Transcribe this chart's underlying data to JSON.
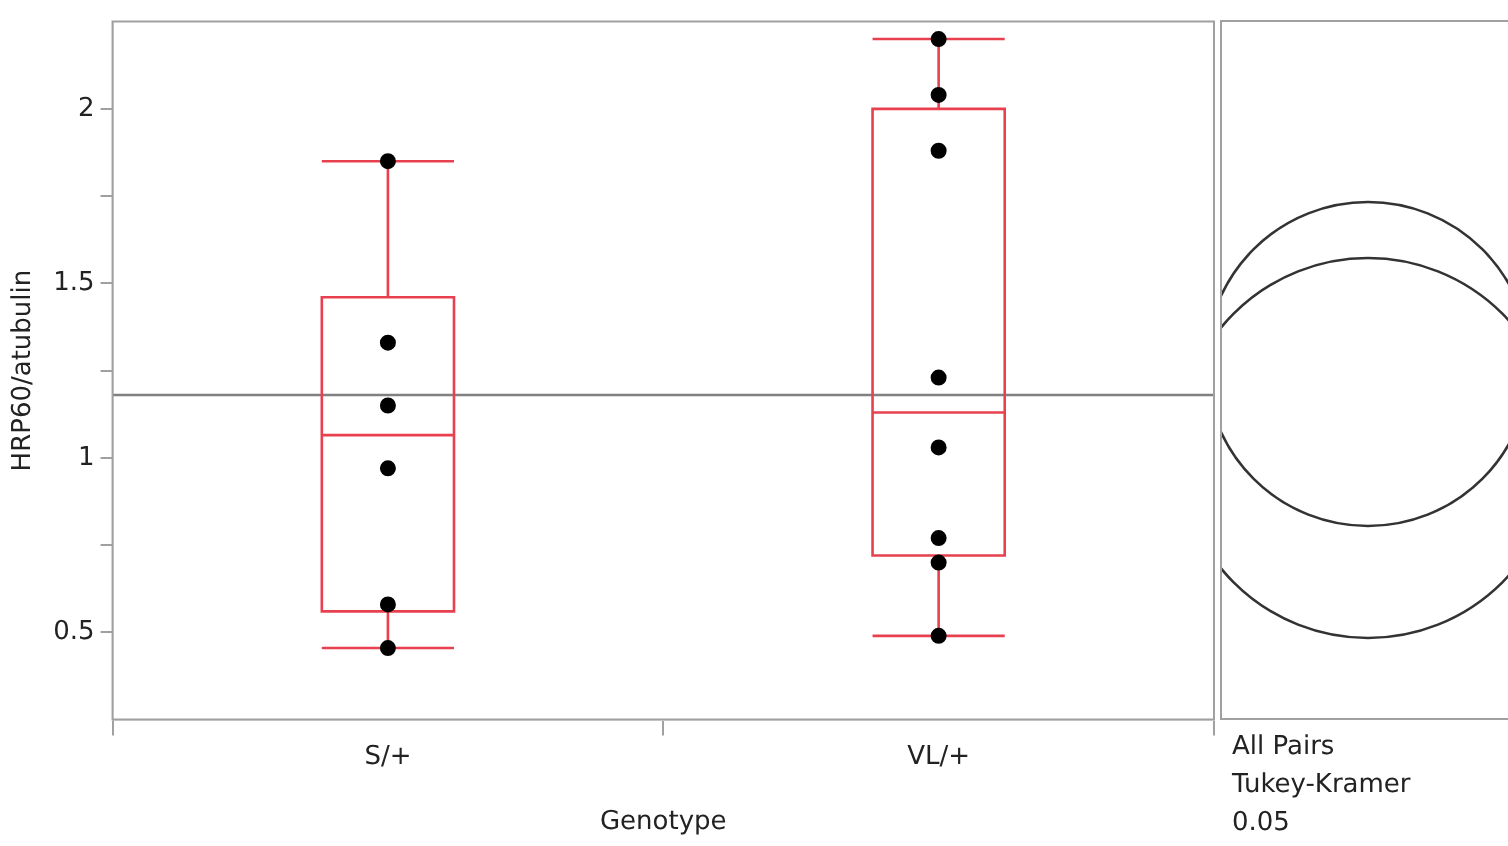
{
  "chart_data": {
    "type": "box",
    "xlabel": "Genotype",
    "ylabel": "HRP60/atubulin",
    "categories": [
      "S/+",
      "VL/+"
    ],
    "series": [
      {
        "type": "box",
        "color": "#e8404f",
        "boxes": [
          {
            "low": 0.455,
            "q1": 0.56,
            "median": 1.065,
            "q3": 1.46,
            "high": 1.85
          },
          {
            "low": 0.49,
            "q1": 0.72,
            "median": 1.13,
            "q3": 2.0,
            "high": 2.2
          }
        ]
      },
      {
        "type": "scatter",
        "color": "#000000",
        "x": [
          "S/+",
          "S/+",
          "S/+",
          "S/+",
          "S/+",
          "S/+",
          "VL/+",
          "VL/+",
          "VL/+",
          "VL/+",
          "VL/+",
          "VL/+",
          "VL/+",
          "VL/+"
        ],
        "values": [
          1.85,
          1.33,
          1.15,
          0.97,
          0.58,
          0.455,
          2.2,
          2.04,
          1.88,
          1.23,
          1.03,
          0.77,
          0.7,
          0.49
        ]
      }
    ],
    "ylim": [
      0.25,
      2.25
    ],
    "yticks": [
      0.5,
      {
        "value": 0.75,
        "label": null
      },
      1,
      {
        "value": 1.25,
        "label": null
      },
      1.5,
      {
        "value": 1.75,
        "label": null
      },
      2
    ],
    "ref_lines": [
      {
        "axis": "y",
        "value": 1.18,
        "color": "#808080"
      }
    ],
    "annotations": [
      "All Pairs",
      "Tukey-Kramer",
      "0.05"
    ],
    "marker": "circle",
    "legend": false
  }
}
